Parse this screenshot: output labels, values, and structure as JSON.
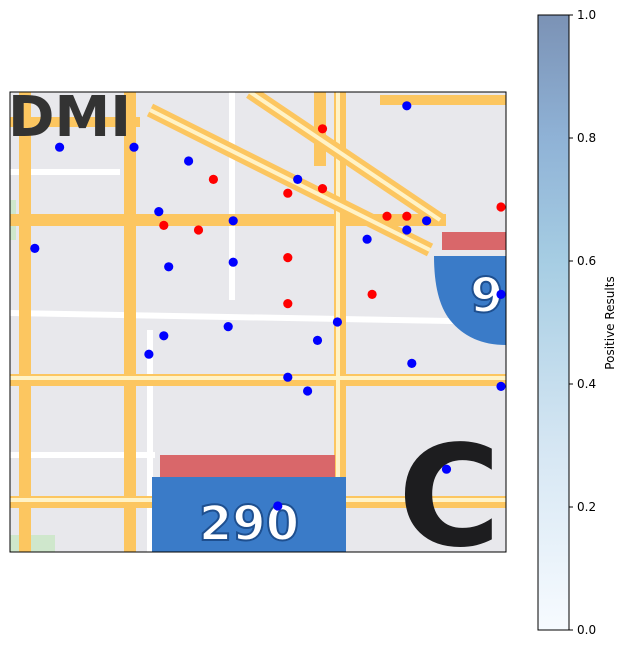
{
  "chart_data": {
    "type": "scatter",
    "title": "",
    "xlabel": "",
    "ylabel": "",
    "background": "street map tile (Chicago area, I-290 and I-90 shields)",
    "map_labels": [
      "290",
      "9",
      "C",
      "DMI"
    ],
    "grid": false,
    "xlim": [
      0,
      100
    ],
    "ylim": [
      0,
      100
    ],
    "colorbar": {
      "label": "Positive Results",
      "range": [
        0.0,
        1.0
      ],
      "ticks": [
        0.0,
        0.2,
        0.4,
        0.6,
        0.8,
        1.0
      ],
      "tick_labels": [
        "0.0",
        "0.2",
        "0.4",
        "0.6",
        "0.8",
        "1.0"
      ],
      "colormap_low": "#f7fbff",
      "colormap_mid": "#a6cde3",
      "colormap_high": "#7b92b5"
    },
    "series": [
      {
        "marker_color": "#ff0000",
        "points": [
          [
            63,
            92
          ],
          [
            41,
            81
          ],
          [
            56,
            78
          ],
          [
            63,
            79
          ],
          [
            76,
            73
          ],
          [
            38,
            70
          ],
          [
            31,
            71
          ],
          [
            56,
            64
          ],
          [
            73,
            56
          ],
          [
            56,
            54
          ],
          [
            99,
            75
          ],
          [
            80,
            73
          ]
        ]
      },
      {
        "marker_color": "#0000ff",
        "points": [
          [
            80,
            97
          ],
          [
            10,
            88
          ],
          [
            25,
            88
          ],
          [
            36,
            85
          ],
          [
            58,
            81
          ],
          [
            30,
            74
          ],
          [
            80,
            70
          ],
          [
            5,
            66
          ],
          [
            72,
            68
          ],
          [
            45,
            72
          ],
          [
            32,
            62
          ],
          [
            45,
            63
          ],
          [
            84,
            72
          ],
          [
            99,
            56
          ],
          [
            31,
            47
          ],
          [
            66,
            50
          ],
          [
            44,
            49
          ],
          [
            62,
            46
          ],
          [
            28,
            43
          ],
          [
            81,
            41
          ],
          [
            56,
            38
          ],
          [
            60,
            35
          ],
          [
            99,
            36
          ],
          [
            88,
            18
          ],
          [
            54,
            10
          ]
        ]
      }
    ]
  }
}
